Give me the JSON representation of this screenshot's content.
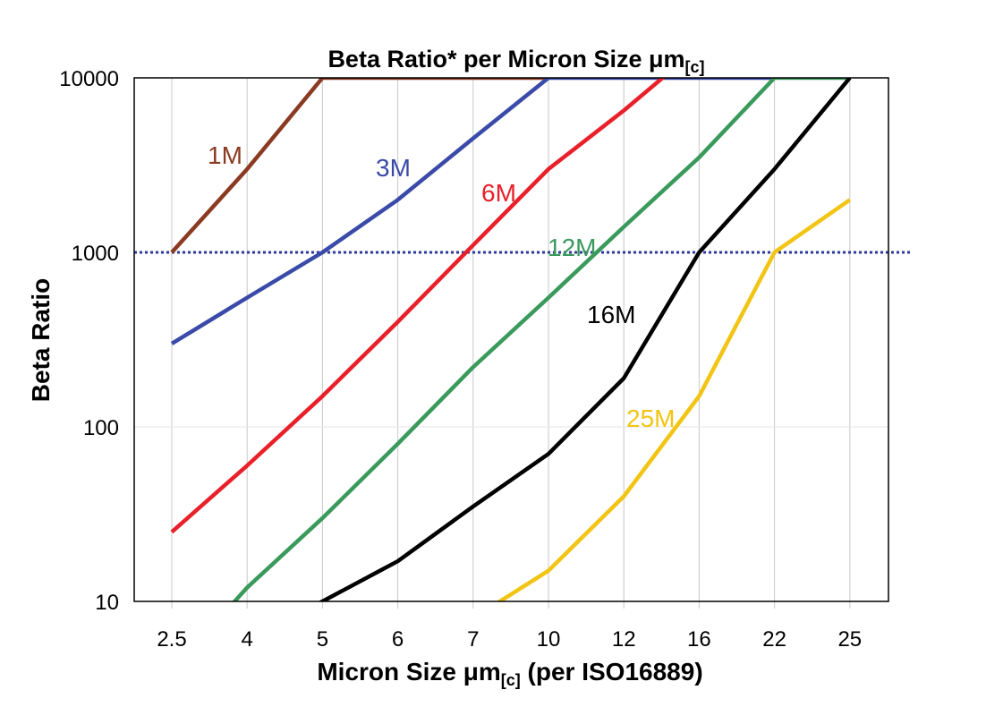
{
  "chart_data": {
    "type": "line",
    "title": "Beta Ratio* per Micron Size μm",
    "title_subscript": "[c]",
    "xlabel": "Micron Size μm",
    "xlabel_subscript": "[c]",
    "xlabel_suffix": " (per ISO16889)",
    "ylabel": "Beta Ratio",
    "y_scale": "log",
    "ylim": [
      10,
      10000
    ],
    "y_ticks": [
      "10",
      "100",
      "1000",
      "10000"
    ],
    "categories": [
      "2.5",
      "4",
      "5",
      "6",
      "7",
      "10",
      "12",
      "16",
      "22",
      "25"
    ],
    "grid": "vertical gridlines at each category, horizontal at decades",
    "reference_line": {
      "y": 1000,
      "style": "dotted",
      "color": "#2e3a9c"
    },
    "series": [
      {
        "name": "1M",
        "color": "#8b3a22",
        "values": [
          1000,
          3000,
          10000,
          10000,
          10000,
          10000,
          null,
          null,
          null,
          null
        ]
      },
      {
        "name": "3M",
        "color": "#3a4aa8",
        "values": [
          300,
          550,
          1000,
          2000,
          4500,
          10000,
          10000,
          10000,
          10000,
          null
        ]
      },
      {
        "name": "6M",
        "color": "#e8202a",
        "values": [
          25,
          60,
          150,
          400,
          1100,
          3000,
          6500,
          15000,
          null,
          null
        ]
      },
      {
        "name": "12M",
        "color": "#3a9a5c",
        "values": [
          4,
          12,
          30,
          80,
          220,
          550,
          1400,
          3500,
          10000,
          10000
        ]
      },
      {
        "name": "16M",
        "color": "#000000",
        "values": [
          null,
          6,
          10,
          17,
          35,
          70,
          190,
          1000,
          3000,
          10000
        ]
      },
      {
        "name": "25M",
        "color": "#f2c414",
        "values": [
          null,
          null,
          null,
          null,
          8,
          15,
          40,
          150,
          1000,
          2000
        ]
      }
    ]
  }
}
